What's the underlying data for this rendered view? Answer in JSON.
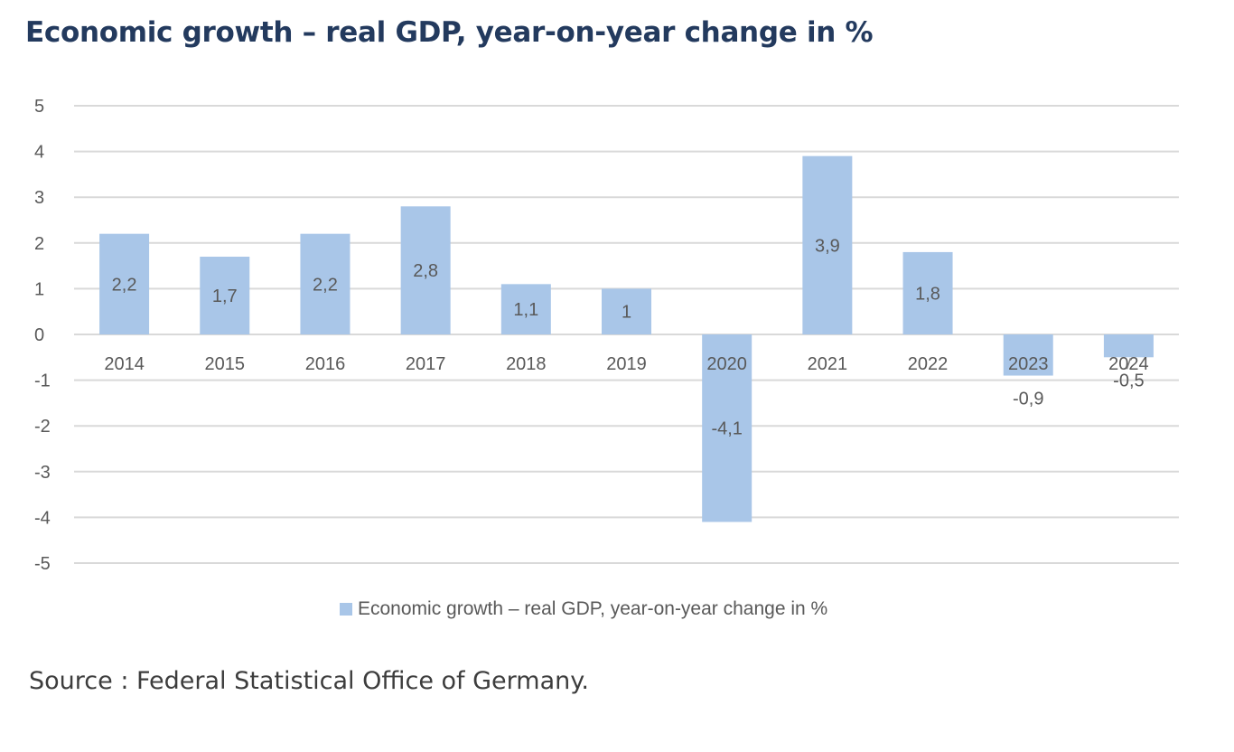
{
  "title": "Economic growth – real GDP, year-on-year change in %",
  "source": "Source : Federal Statistical Office of Germany.",
  "colors": {
    "bar": "#a9c6e8",
    "grid": "#d9d9d9",
    "text": "#595959",
    "title": "#233a5e"
  },
  "chart_data": {
    "type": "bar",
    "title": "Economic growth – real GDP, year-on-year change in %",
    "categories": [
      "2014",
      "2015",
      "2016",
      "2017",
      "2018",
      "2019",
      "2020",
      "2021",
      "2022",
      "2023",
      "2024"
    ],
    "series": [
      {
        "name": "Economic growth – real GDP, year-on-year change in %",
        "values": [
          2.2,
          1.7,
          2.2,
          2.8,
          1.1,
          1.0,
          -4.1,
          3.9,
          1.8,
          -0.9,
          -0.5
        ],
        "labels": [
          "2,2",
          "1,7",
          "2,2",
          "2,8",
          "1,1",
          "1",
          "-4,1",
          "3,9",
          "1,8",
          "-0,9",
          "-0,5"
        ]
      }
    ],
    "yticks": [
      5,
      4,
      3,
      2,
      1,
      0,
      -1,
      -2,
      -3,
      -4,
      -5
    ],
    "ylim": [
      -5,
      5
    ],
    "grid": true,
    "legend": "bottom"
  }
}
